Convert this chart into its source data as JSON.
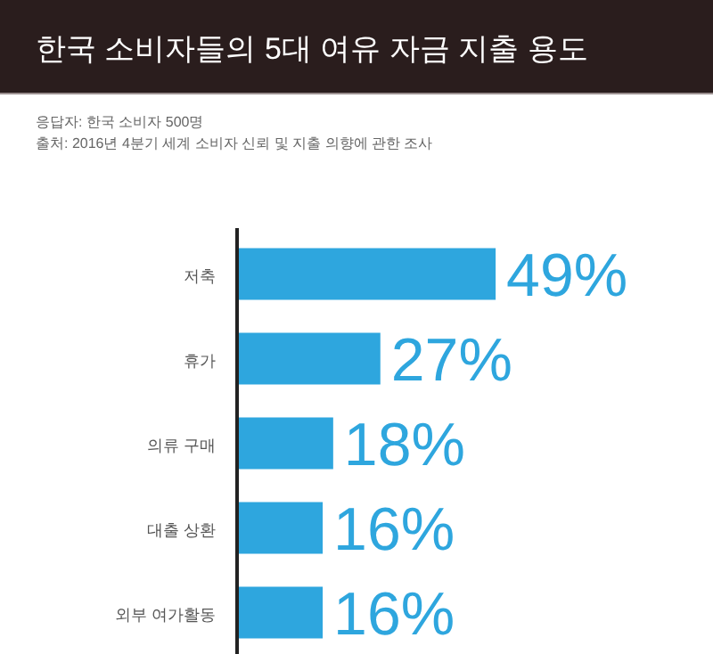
{
  "chart_data": {
    "type": "bar",
    "orientation": "horizontal",
    "relative": false,
    "title": "한국 소비자들의 5대 여유 자금 지출 용도",
    "subtitle": "응답자: 한국 소비자 500명",
    "annotations": [
      "출처: 2016년 4분기 세계 소비자 신뢰 및 지출 의향에 관한 조사"
    ],
    "categories": [
      "저축",
      "휴가",
      "의류 구매",
      "대출 상환",
      "외부 여가활동"
    ],
    "values": [
      49,
      27,
      18,
      16,
      16
    ],
    "value_labels": [
      "49%",
      "27%",
      "18%",
      "16%",
      "16%"
    ],
    "color": "#2ea6de"
  }
}
